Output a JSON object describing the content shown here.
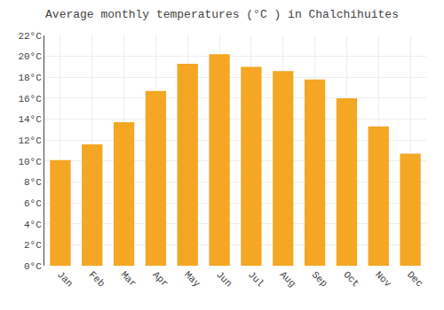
{
  "chart_data": {
    "type": "bar",
    "title": "Average monthly temperatures (°C ) in Chalchihuites",
    "categories": [
      "Jan",
      "Feb",
      "Mar",
      "Apr",
      "May",
      "Jun",
      "Jul",
      "Aug",
      "Sep",
      "Oct",
      "Nov",
      "Dec"
    ],
    "values": [
      10.1,
      11.6,
      13.7,
      16.7,
      19.3,
      20.2,
      19.0,
      18.6,
      17.8,
      16.0,
      13.3,
      10.7
    ],
    "color": "#F5A623",
    "ylim": [
      0,
      22
    ],
    "yticks": [
      {
        "value": 0,
        "label": "0°C"
      },
      {
        "value": 2,
        "label": "2°C"
      },
      {
        "value": 4,
        "label": "4°C"
      },
      {
        "value": 6,
        "label": "6°C"
      },
      {
        "value": 8,
        "label": "8°C"
      },
      {
        "value": 10,
        "label": "10°C"
      },
      {
        "value": 12,
        "label": "12°C"
      },
      {
        "value": 14,
        "label": "14°C"
      },
      {
        "value": 16,
        "label": "16°C"
      },
      {
        "value": 18,
        "label": "18°C"
      },
      {
        "value": 20,
        "label": "20°C"
      },
      {
        "value": 22,
        "label": "22°C"
      }
    ],
    "grid": true
  }
}
